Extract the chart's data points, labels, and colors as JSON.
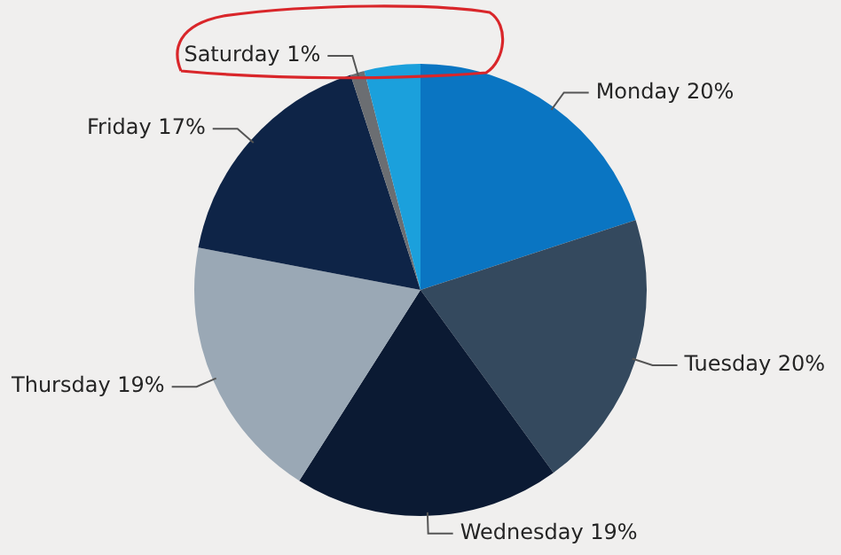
{
  "chart_data": {
    "type": "pie",
    "categories": [
      "Monday",
      "Tuesday",
      "Wednesday",
      "Thursday",
      "Friday",
      "Saturday",
      null
    ],
    "values": [
      20,
      20,
      19,
      19,
      17,
      1,
      4
    ],
    "value_labels": [
      "20%",
      "20%",
      "19%",
      "19%",
      "17%",
      "1%",
      null
    ],
    "colors": [
      "#0a75c2",
      "#34495e",
      "#0b1a33",
      "#9aa8b5",
      "#0e2447",
      "#6b6e72",
      "#1ba0dc"
    ],
    "legend": false
  }
}
